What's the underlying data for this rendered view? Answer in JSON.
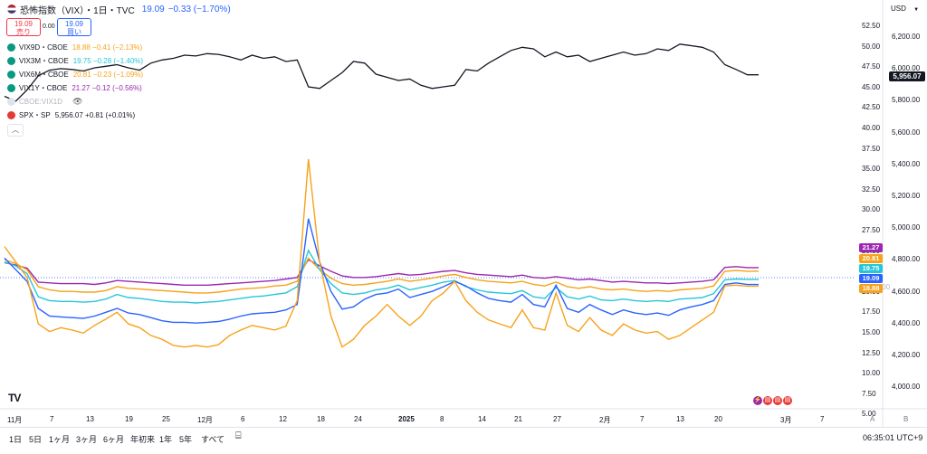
{
  "header": {
    "title": "恐怖指数（VIX）・1日・TVC",
    "last": "19.09",
    "change": "−0.33 (−1.70%)",
    "sell_price": "19.09",
    "sell_label": "売り",
    "buy_price": "19.09",
    "buy_label": "買い",
    "spread": "0.00"
  },
  "legend": [
    {
      "name": "VIX9D・CBOE",
      "value": "18.88 −0.41 (−2.13%)",
      "color": "#f7a21b"
    },
    {
      "name": "VIX3M・CBOE",
      "value": "19.75 −0.28 (−1.40%)",
      "color": "#26c6da"
    },
    {
      "name": "VIX6M・CBOE",
      "value": "20.81 −0.23 (−1.09%)",
      "color": "#f7a21b"
    },
    {
      "name": "VIX1Y・CBOE",
      "value": "21.27 −0.12 (−0.56%)",
      "color": "#9c27b0"
    },
    {
      "name": "CBOE:VIX1D",
      "value": "",
      "color": "#d1d4dc"
    },
    {
      "name": "SPX・SP",
      "value": "5,956.07 +0.81 (+0.01%)",
      "color": "#e53935"
    }
  ],
  "icons": {
    "eye": "eye-icon",
    "collapse": "chevron-up-icon",
    "compare": "compare-icon"
  },
  "axis": {
    "currency": "USD",
    "left_ticks": [
      "52.50",
      "50.00",
      "47.50",
      "45.00",
      "42.50",
      "40.00",
      "37.50",
      "35.00",
      "32.50",
      "30.00",
      "27.50",
      "25.00",
      "22.50",
      "20.00",
      "17.50",
      "15.00",
      "12.50",
      "10.00",
      "7.50",
      "5.00"
    ],
    "right_ticks": [
      "6,200.00",
      "6,000.00",
      "5,800.00",
      "5,600.00",
      "5,400.00",
      "5,200.00",
      "5,000.00",
      "4,800.00",
      "4,600.00",
      "4,400.00",
      "4,200.00",
      "4,000.00"
    ],
    "x_ticks": [
      "11月",
      "7",
      "13",
      "19",
      "25",
      "12月",
      "6",
      "12",
      "18",
      "24",
      "2025",
      "8",
      "14",
      "21",
      "27",
      "2月",
      "7",
      "13",
      "20",
      "3月",
      "7"
    ],
    "price_tags": [
      {
        "value": "21.27",
        "color": "#9c27b0"
      },
      {
        "value": "20.81",
        "color": "#f7a21b"
      },
      {
        "value": "19.75",
        "color": "#26c6da"
      },
      {
        "value": "19.09",
        "color": "#2962ff"
      },
      {
        "value": "18.88",
        "color": "#f7a21b"
      }
    ],
    "spx_tag": "5,956.07",
    "hidden_tag": "4,600.00",
    "corner_a": "A",
    "corner_b": "B"
  },
  "bottom": {
    "periods": [
      "1日",
      "5日",
      "1ヶ月",
      "3ヶ月",
      "6ヶ月",
      "年初来",
      "1年",
      "5年",
      "すべて"
    ],
    "clock": "06:35:01 UTC+9"
  },
  "chart_data": {
    "type": "line",
    "x_start": "2024-10-28",
    "x_end": "2025-03-10",
    "ylim_left": [
      5,
      52.5
    ],
    "ylim_right": [
      4000,
      6300
    ],
    "series": [
      {
        "name": "SPX・SP",
        "axis": "right",
        "color": "#131722",
        "values": [
          5820,
          5790,
          5860,
          5950,
          5985,
          5995,
          5990,
          5980,
          6000,
          6010,
          6020,
          6000,
          5985,
          6030,
          6050,
          6060,
          6080,
          6075,
          6090,
          6085,
          6070,
          6050,
          6080,
          6060,
          6070,
          6040,
          6050,
          5880,
          5870,
          5920,
          5970,
          6040,
          6030,
          5960,
          5940,
          5920,
          5930,
          5890,
          5870,
          5880,
          5890,
          5990,
          5980,
          6030,
          6070,
          6110,
          6130,
          6120,
          6070,
          6100,
          6070,
          6080,
          6040,
          6060,
          6080,
          6100,
          6080,
          6090,
          6120,
          6110,
          6150,
          6140,
          6130,
          6100,
          6020,
          5990,
          5956.07,
          5956.07
        ]
      },
      {
        "name": "VIX1Y・CBOE",
        "axis": "left",
        "color": "#9c27b0",
        "values": [
          21.9,
          21.6,
          21.2,
          19.4,
          19.3,
          19.2,
          19.2,
          19.2,
          19.1,
          19.3,
          19.6,
          19.5,
          19.4,
          19.3,
          19.2,
          19.1,
          19.0,
          19.0,
          19.0,
          19.1,
          19.2,
          19.3,
          19.4,
          19.5,
          19.6,
          19.8,
          20.0,
          22.3,
          21.5,
          20.8,
          20.2,
          20.0,
          20.0,
          20.1,
          20.3,
          20.5,
          20.3,
          20.4,
          20.6,
          20.8,
          20.9,
          20.6,
          20.4,
          20.3,
          20.2,
          20.1,
          20.3,
          20.0,
          19.9,
          20.1,
          19.9,
          19.7,
          19.8,
          19.6,
          19.4,
          19.5,
          19.4,
          19.3,
          19.3,
          19.2,
          19.3,
          19.4,
          19.5,
          19.7,
          21.3,
          21.4,
          21.27,
          21.27
        ]
      },
      {
        "name": "VIX6M・CBOE",
        "axis": "left",
        "color": "#f7a21b",
        "values": [
          22.3,
          21.8,
          21.0,
          18.8,
          18.4,
          18.2,
          18.2,
          18.1,
          18.1,
          18.3,
          18.8,
          18.6,
          18.5,
          18.4,
          18.3,
          18.2,
          18.1,
          18.0,
          18.0,
          18.1,
          18.3,
          18.5,
          18.6,
          18.7,
          18.9,
          19.0,
          19.5,
          22.5,
          21.0,
          19.9,
          19.2,
          19.0,
          19.1,
          19.3,
          19.5,
          19.8,
          19.5,
          19.7,
          19.9,
          20.2,
          20.4,
          20.0,
          19.7,
          19.5,
          19.4,
          19.3,
          19.5,
          19.1,
          18.9,
          19.4,
          18.8,
          18.6,
          18.8,
          18.5,
          18.4,
          18.5,
          18.3,
          18.2,
          18.3,
          18.2,
          18.4,
          18.5,
          18.6,
          18.9,
          20.8,
          20.9,
          20.81,
          20.81
        ]
      },
      {
        "name": "VIX3M・CBOE",
        "axis": "left",
        "color": "#26c6da",
        "values": [
          22.0,
          21.5,
          20.5,
          17.5,
          17.0,
          16.9,
          16.9,
          16.8,
          16.9,
          17.2,
          17.8,
          17.4,
          17.3,
          17.1,
          16.9,
          16.8,
          16.8,
          16.7,
          16.8,
          16.9,
          17.1,
          17.3,
          17.5,
          17.6,
          17.8,
          18.0,
          18.8,
          23.5,
          21.0,
          19.2,
          18.0,
          17.8,
          18.0,
          18.4,
          18.6,
          19.0,
          18.4,
          18.7,
          19.0,
          19.4,
          19.6,
          18.8,
          18.4,
          18.1,
          18.0,
          17.9,
          18.3,
          17.5,
          17.3,
          18.7,
          17.5,
          17.2,
          17.6,
          17.1,
          17.0,
          17.2,
          17.0,
          16.9,
          17.0,
          16.9,
          17.2,
          17.3,
          17.4,
          17.9,
          19.7,
          19.8,
          19.75,
          19.75
        ]
      },
      {
        "name": "VIX",
        "axis": "left",
        "color": "#2962ff",
        "values": [
          22.5,
          21.0,
          19.5,
          16.0,
          15.0,
          14.9,
          14.8,
          14.7,
          15.0,
          15.5,
          16.0,
          15.4,
          15.2,
          14.8,
          14.4,
          14.2,
          14.2,
          14.1,
          14.2,
          14.3,
          14.6,
          15.0,
          15.3,
          15.4,
          15.5,
          15.8,
          16.5,
          27.6,
          22.0,
          18.2,
          15.9,
          16.2,
          17.2,
          17.8,
          18.0,
          18.5,
          17.4,
          17.8,
          18.2,
          18.8,
          19.5,
          18.9,
          18.0,
          17.3,
          17.0,
          16.8,
          17.8,
          16.5,
          16.2,
          19.0,
          16.0,
          15.5,
          16.5,
          15.8,
          15.2,
          15.8,
          15.4,
          15.2,
          15.4,
          15.1,
          15.8,
          16.2,
          16.5,
          17.0,
          19.1,
          19.3,
          19.09,
          19.09
        ]
      },
      {
        "name": "VIX9D・CBOE",
        "axis": "left",
        "color": "#f7a21b",
        "values": [
          24.0,
          22.0,
          20.0,
          14.0,
          13.0,
          13.5,
          13.2,
          12.8,
          13.8,
          14.6,
          15.5,
          14.0,
          13.5,
          12.5,
          12.0,
          11.2,
          11.0,
          11.2,
          11.0,
          11.3,
          12.5,
          13.2,
          13.8,
          13.5,
          13.2,
          13.7,
          17.0,
          35.3,
          22.0,
          15.0,
          11.0,
          12.0,
          13.8,
          15.0,
          16.5,
          15.0,
          13.8,
          15.0,
          17.0,
          18.0,
          19.5,
          17.0,
          15.5,
          14.5,
          14.0,
          13.5,
          15.8,
          13.5,
          13.2,
          18.0,
          13.8,
          13.0,
          14.8,
          13.2,
          12.5,
          14.0,
          13.2,
          12.8,
          13.0,
          12.0,
          12.5,
          13.5,
          14.5,
          15.5,
          18.9,
          19.0,
          18.88,
          18.88
        ]
      }
    ]
  }
}
